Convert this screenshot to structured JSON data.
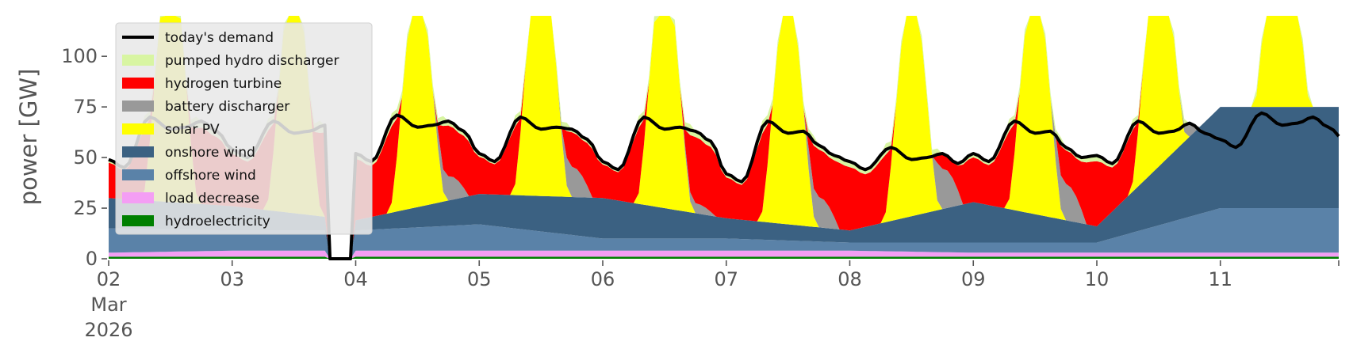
{
  "chart_data": {
    "type": "area",
    "stacked": true,
    "ylabel": "power [GW]",
    "ylim": [
      0,
      120
    ],
    "yticks": [
      0,
      25,
      50,
      75,
      100
    ],
    "x_start": "2026-03-02 00:00",
    "x_end": "2026-03-11 23:00",
    "x_ticks": [
      {
        "date": "2026-03-02",
        "label": "02",
        "sublabel_1": "Mar",
        "sublabel_2": "2026"
      },
      {
        "date": "2026-03-03",
        "label": "03"
      },
      {
        "date": "2026-03-04",
        "label": "04"
      },
      {
        "date": "2026-03-05",
        "label": "05"
      },
      {
        "date": "2026-03-06",
        "label": "06"
      },
      {
        "date": "2026-03-07",
        "label": "07"
      },
      {
        "date": "2026-03-08",
        "label": "08"
      },
      {
        "date": "2026-03-09",
        "label": "09"
      },
      {
        "date": "2026-03-10",
        "label": "10"
      },
      {
        "date": "2026-03-11",
        "label": "11"
      }
    ],
    "grid": false,
    "legend_position": "top-left",
    "legend": [
      {
        "key": "demand",
        "label": "today's demand",
        "kind": "line",
        "color": "#000000"
      },
      {
        "key": "phs",
        "label": "pumped hydro discharger",
        "kind": "area",
        "color": "#d8f5a2"
      },
      {
        "key": "h2",
        "label": "hydrogen turbine",
        "kind": "area",
        "color": "#ff0000"
      },
      {
        "key": "battery",
        "label": "battery discharger",
        "kind": "area",
        "color": "#999999"
      },
      {
        "key": "solar",
        "label": "solar PV",
        "kind": "area",
        "color": "#ffff00"
      },
      {
        "key": "onwind",
        "label": "onshore wind",
        "kind": "area",
        "color": "#3b6182"
      },
      {
        "key": "offwind",
        "label": "offshore wind",
        "kind": "area",
        "color": "#5a82a8"
      },
      {
        "key": "load",
        "label": "load decrease",
        "kind": "area",
        "color": "#f49ef4"
      },
      {
        "key": "hydro",
        "label": "hydroelectricity",
        "kind": "area",
        "color": "#008000"
      }
    ],
    "stack_order_bottom_to_top": [
      "hydro",
      "load",
      "offwind",
      "onwind",
      "solar",
      "battery",
      "h2",
      "phs"
    ],
    "daily_profile": {
      "hydro_gw": 1,
      "load_decrease_gw": [
        2,
        3,
        3,
        3,
        3,
        3,
        3,
        2,
        2,
        2
      ],
      "offshore_wind_gw": [
        12,
        10,
        10,
        13,
        6,
        6,
        4,
        5,
        5,
        22
      ],
      "onshore_wind_gw": [
        15,
        12,
        5,
        15,
        20,
        10,
        6,
        20,
        8,
        50
      ],
      "solar_peak_gw": [
        120,
        118,
        110,
        125,
        120,
        115,
        112,
        115,
        110,
        125
      ],
      "solar_peak_hour": 12,
      "battery_evening_gw": [
        0,
        0,
        12,
        15,
        5,
        15,
        20,
        18,
        15,
        12
      ],
      "demand_morning_peak_gw": [
        70,
        68,
        71,
        70,
        70,
        68,
        55,
        68,
        68,
        72
      ],
      "demand_evening_peak_gw": [
        68,
        66,
        68,
        64,
        63,
        56,
        52,
        55,
        67,
        70
      ],
      "demand_night_min_gw": [
        45,
        50,
        48,
        48,
        44,
        38,
        44,
        48,
        47,
        55
      ]
    },
    "outage": {
      "start": "2026-03-03 19:00",
      "end": "2026-03-03 23:00"
    },
    "notes": []
  }
}
